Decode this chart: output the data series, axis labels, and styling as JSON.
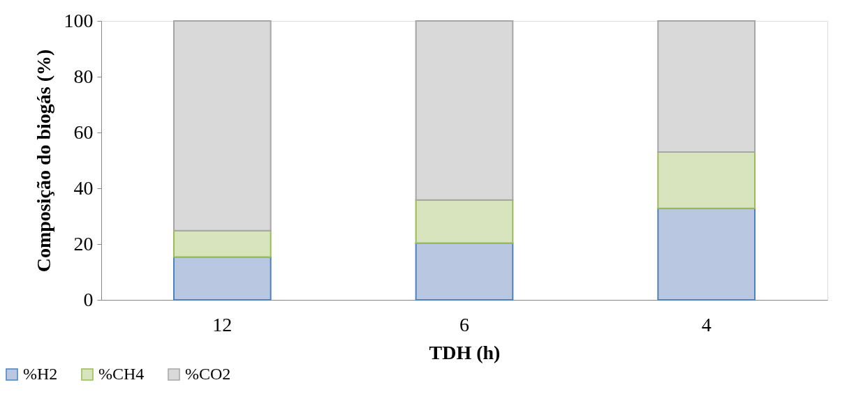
{
  "chart_data": {
    "type": "bar",
    "stacked": true,
    "xlabel": "TDH (h)",
    "ylabel": "Composição do biogás (%)",
    "categories": [
      "12",
      "6",
      "4"
    ],
    "series": [
      {
        "name": "%H2",
        "color": "#b9c7e0",
        "values": [
          15.4,
          20.4,
          32.8
        ]
      },
      {
        "name": "%CH4",
        "color": "#d7e4bd",
        "values": [
          9.4,
          15.4,
          20.2
        ]
      },
      {
        "name": "%CO2",
        "color": "#d9d9d9",
        "values": [
          75.2,
          64.2,
          47.0
        ]
      }
    ],
    "ylim": [
      0,
      100
    ],
    "yticks": [
      0,
      20,
      40,
      60,
      80,
      100
    ],
    "grid": false,
    "legend": "bottom left"
  }
}
